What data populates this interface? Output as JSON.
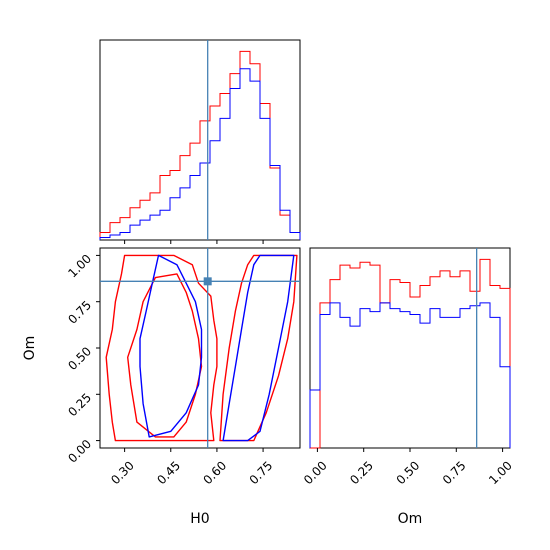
{
  "chart_data": {
    "type": "corner",
    "parameters": [
      "H0",
      "Om"
    ],
    "truth": {
      "H0": 0.57,
      "Om": 0.86
    },
    "colors": {
      "series_red": "#ff0000",
      "series_blue": "#0000ff",
      "truth": "#4682b4"
    },
    "axes": {
      "H0": {
        "label": "H0",
        "range": [
          0.22,
          0.87
        ],
        "ticks": [
          0.3,
          0.45,
          0.6,
          0.75
        ],
        "tick_labels": [
          "0.30",
          "0.45",
          "0.60",
          "0.75"
        ]
      },
      "Om": {
        "label": "Om",
        "range": [
          -0.04,
          1.04
        ],
        "ticks": [
          0.0,
          0.25,
          0.5,
          0.75,
          1.0
        ],
        "tick_labels": [
          "0.00",
          "0.25",
          "0.50",
          "0.75",
          "1.00"
        ]
      }
    },
    "hist_H0": {
      "bin_edges": [
        0.22,
        0.2525,
        0.285,
        0.3175,
        0.35,
        0.3825,
        0.415,
        0.4475,
        0.48,
        0.5125,
        0.545,
        0.5775,
        0.61,
        0.6425,
        0.675,
        0.7075,
        0.74,
        0.7725,
        0.805,
        0.8375,
        0.87
      ],
      "series": [
        {
          "color": "red",
          "counts": [
            3,
            7,
            9,
            13,
            16,
            19,
            26,
            28,
            34,
            39,
            48,
            54,
            59,
            67,
            76,
            71,
            55,
            29,
            10,
            3
          ]
        },
        {
          "color": "blue",
          "counts": [
            1,
            2,
            3,
            6,
            8,
            10,
            12,
            17,
            21,
            26,
            31,
            40,
            49,
            61,
            69,
            64,
            49,
            30,
            12,
            3
          ]
        }
      ]
    },
    "hist_Om": {
      "bin_edges": [
        -0.04,
        0.014,
        0.068,
        0.122,
        0.176,
        0.23,
        0.284,
        0.338,
        0.392,
        0.446,
        0.5,
        0.554,
        0.608,
        0.662,
        0.716,
        0.77,
        0.824,
        0.878,
        0.932,
        0.986,
        1.04
      ],
      "series": [
        {
          "color": "red",
          "counts": [
            0,
            50,
            58,
            63,
            62,
            64,
            63,
            50,
            58,
            57,
            52,
            56,
            59,
            61,
            59,
            61,
            54,
            65,
            56,
            55
          ]
        },
        {
          "color": "blue",
          "counts": [
            20,
            46,
            50,
            45,
            42,
            48,
            47,
            50,
            48,
            47,
            46,
            43,
            48,
            45,
            45,
            48,
            49,
            50,
            45,
            28
          ]
        }
      ]
    },
    "contours_2d": [
      {
        "color": "red",
        "level": "outer",
        "points": [
          [
            0.27,
            0.0
          ],
          [
            0.26,
            0.1
          ],
          [
            0.25,
            0.25
          ],
          [
            0.24,
            0.45
          ],
          [
            0.26,
            0.6
          ],
          [
            0.27,
            0.75
          ],
          [
            0.29,
            0.9
          ],
          [
            0.3,
            1.0
          ],
          [
            0.38,
            1.0
          ],
          [
            0.46,
            1.0
          ],
          [
            0.52,
            0.95
          ],
          [
            0.54,
            0.85
          ],
          [
            0.58,
            0.78
          ],
          [
            0.59,
            0.65
          ],
          [
            0.6,
            0.55
          ],
          [
            0.6,
            0.4
          ],
          [
            0.59,
            0.3
          ],
          [
            0.58,
            0.15
          ],
          [
            0.59,
            0.0
          ],
          [
            0.45,
            0.0
          ],
          [
            0.36,
            0.0
          ]
        ]
      },
      {
        "color": "red",
        "level": "inner",
        "points": [
          [
            0.34,
            0.1
          ],
          [
            0.32,
            0.3
          ],
          [
            0.31,
            0.45
          ],
          [
            0.34,
            0.6
          ],
          [
            0.36,
            0.75
          ],
          [
            0.4,
            0.88
          ],
          [
            0.47,
            0.9
          ],
          [
            0.5,
            0.8
          ],
          [
            0.52,
            0.7
          ],
          [
            0.54,
            0.55
          ],
          [
            0.55,
            0.4
          ],
          [
            0.53,
            0.25
          ],
          [
            0.5,
            0.1
          ],
          [
            0.46,
            0.02
          ],
          [
            0.4,
            0.02
          ]
        ]
      },
      {
        "color": "red",
        "level": "right",
        "points": [
          [
            0.61,
            0.0
          ],
          [
            0.62,
            0.25
          ],
          [
            0.64,
            0.5
          ],
          [
            0.66,
            0.7
          ],
          [
            0.68,
            0.85
          ],
          [
            0.7,
            0.95
          ],
          [
            0.72,
            1.0
          ],
          [
            0.86,
            1.0
          ],
          [
            0.85,
            0.75
          ],
          [
            0.83,
            0.55
          ],
          [
            0.8,
            0.35
          ],
          [
            0.76,
            0.15
          ],
          [
            0.72,
            0.0
          ]
        ]
      },
      {
        "color": "blue",
        "level": "outer",
        "points": [
          [
            0.38,
            0.02
          ],
          [
            0.36,
            0.2
          ],
          [
            0.35,
            0.4
          ],
          [
            0.35,
            0.55
          ],
          [
            0.37,
            0.7
          ],
          [
            0.39,
            0.85
          ],
          [
            0.41,
            1.0
          ],
          [
            0.47,
            0.95
          ],
          [
            0.5,
            0.85
          ],
          [
            0.53,
            0.75
          ],
          [
            0.55,
            0.6
          ],
          [
            0.55,
            0.45
          ],
          [
            0.54,
            0.3
          ],
          [
            0.5,
            0.15
          ],
          [
            0.45,
            0.05
          ]
        ]
      },
      {
        "color": "blue",
        "level": "right",
        "points": [
          [
            0.62,
            0.0
          ],
          [
            0.64,
            0.2
          ],
          [
            0.66,
            0.4
          ],
          [
            0.68,
            0.6
          ],
          [
            0.7,
            0.8
          ],
          [
            0.72,
            0.95
          ],
          [
            0.74,
            1.0
          ],
          [
            0.85,
            1.0
          ],
          [
            0.83,
            0.75
          ],
          [
            0.8,
            0.5
          ],
          [
            0.77,
            0.25
          ],
          [
            0.74,
            0.05
          ],
          [
            0.7,
            0.0
          ]
        ]
      }
    ]
  }
}
